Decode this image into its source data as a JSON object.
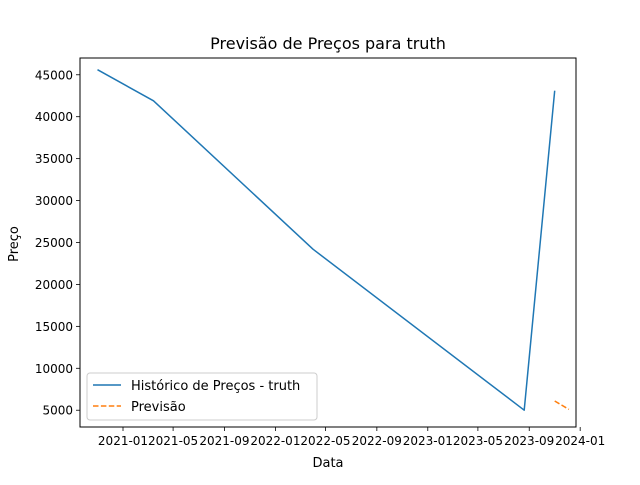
{
  "chart_data": {
    "type": "line",
    "title": "Previsão de Preços para truth",
    "xlabel": "Data",
    "ylabel": "Preço",
    "x_ticks": [
      "2021-01",
      "2021-05",
      "2021-09",
      "2022-01",
      "2022-05",
      "2022-09",
      "2023-01",
      "2023-05",
      "2023-09",
      "2024-01"
    ],
    "y_ticks": [
      5000,
      10000,
      15000,
      20000,
      25000,
      30000,
      35000,
      40000,
      45000
    ],
    "xlim": [
      "2020-09-20",
      "2023-12-22"
    ],
    "ylim": [
      3000,
      47000
    ],
    "grid": false,
    "legend_position": "lower-left",
    "series": [
      {
        "name": "Histórico de Preços - truth",
        "color": "#1f77b4",
        "style": "solid",
        "points": [
          {
            "x": "2020-11-01",
            "y": 45600
          },
          {
            "x": "2021-03-15",
            "y": 41900
          },
          {
            "x": "2022-04-01",
            "y": 24200
          },
          {
            "x": "2023-08-20",
            "y": 5000
          },
          {
            "x": "2023-11-01",
            "y": 43100
          }
        ]
      },
      {
        "name": "Previsão",
        "color": "#ff7f0e",
        "style": "dashed",
        "points": [
          {
            "x": "2023-11-01",
            "y": 6100
          },
          {
            "x": "2023-12-05",
            "y": 5100
          }
        ]
      }
    ]
  }
}
